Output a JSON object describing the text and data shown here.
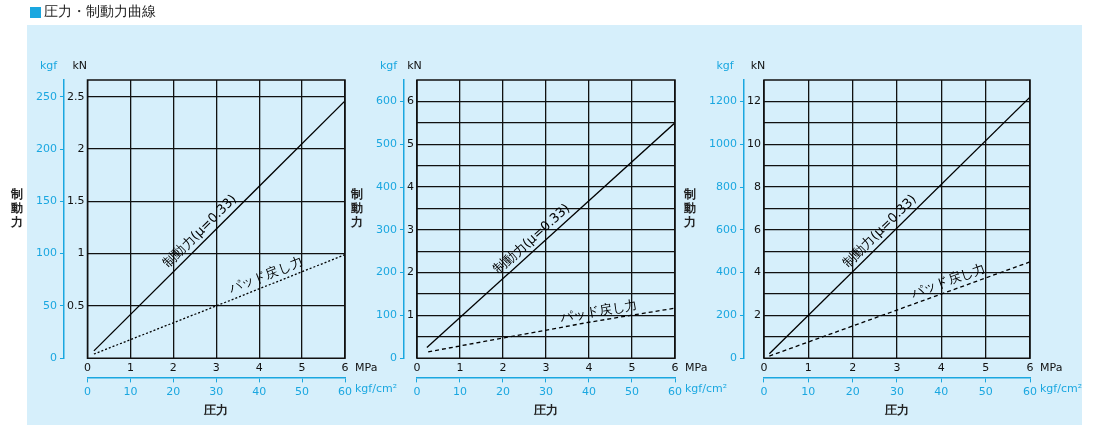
{
  "chart_data": [
    {
      "type": "line",
      "title": "圧力・制動力曲線",
      "xlabel": "圧力",
      "ylabel": "制動力",
      "annotations": [
        "kN",
        "kgf",
        "MPa",
        "kgf/cm²"
      ],
      "series": [
        {
          "name": "制動力(μ=0.33)",
          "color": "#000000",
          "axis": "y2",
          "x": [
            0.15,
            6
          ],
          "values": [
            0.07,
            2.46
          ],
          "line_style": "solid"
        },
        {
          "name": "パッド戻し力",
          "color": "#000000",
          "axis": "y2",
          "x": [
            0.15,
            3,
            6
          ],
          "values": [
            0.04,
            0.5,
            0.99
          ],
          "line_style": "dotted"
        }
      ],
      "xlim": [
        0,
        6
      ],
      "xticks": [
        0,
        1,
        2,
        3,
        4,
        5,
        6
      ],
      "x2lim": [
        0,
        60
      ],
      "x2ticks": [
        0,
        10,
        20,
        30,
        40,
        50,
        60
      ],
      "y2lim": [
        0,
        2.66
      ],
      "y2ticks": [
        0.5,
        1,
        1.5,
        2,
        2.5
      ],
      "ylim": [
        0,
        266
      ],
      "yticks": [
        0,
        50,
        100,
        150,
        200,
        250
      ],
      "grid": true,
      "legend": false,
      "marker": "none"
    },
    {
      "type": "line",
      "xlabel": "圧力",
      "ylabel": "制動力",
      "annotations": [
        "kN",
        "kgf",
        "MPa",
        "kgf/cm²"
      ],
      "series": [
        {
          "name": "制動力(μ=0.33)",
          "color": "#000000",
          "axis": "y2",
          "x": [
            0.23,
            6
          ],
          "values": [
            0.25,
            5.5
          ],
          "line_style": "solid"
        },
        {
          "name": "パッド戻し力",
          "color": "#000000",
          "axis": "y2",
          "x": [
            0.26,
            2,
            4,
            6
          ],
          "values": [
            0.15,
            0.47,
            0.84,
            1.17
          ],
          "line_style": "dashed"
        }
      ],
      "xlim": [
        0,
        6
      ],
      "xticks": [
        0,
        1,
        2,
        3,
        4,
        5,
        6
      ],
      "x2lim": [
        0,
        60
      ],
      "x2ticks": [
        0,
        10,
        20,
        30,
        40,
        50,
        60
      ],
      "y2lim": [
        0,
        6.5
      ],
      "y2ticks": [
        {
          "value": 0.5,
          "label": null
        },
        1,
        {
          "value": 1.5,
          "label": null
        },
        2,
        {
          "value": 2.5,
          "label": null
        },
        3,
        {
          "value": 3.5,
          "label": null
        },
        4,
        {
          "value": 4.5,
          "label": null
        },
        5,
        {
          "value": 5.5,
          "label": null
        },
        6
      ],
      "ylim": [
        0,
        650
      ],
      "yticks": [
        0,
        100,
        200,
        300,
        400,
        500,
        600
      ],
      "grid": true,
      "legend": false,
      "marker": "none"
    },
    {
      "type": "line",
      "xlabel": "圧力",
      "ylabel": "制動力",
      "annotations": [
        "kN",
        "kgf",
        "MPa",
        "kgf/cm²"
      ],
      "series": [
        {
          "name": "制動力(μ=0.33)",
          "color": "#000000",
          "axis": "y2",
          "x": [
            0.12,
            6
          ],
          "values": [
            0.21,
            12.2
          ],
          "line_style": "solid"
        },
        {
          "name": "パッド戻し力",
          "color": "#000000",
          "axis": "y2",
          "x": [
            0.12,
            3,
            6
          ],
          "values": [
            0.1,
            2.25,
            4.5
          ],
          "line_style": "dashed"
        }
      ],
      "xlim": [
        0,
        6
      ],
      "xticks": [
        0,
        1,
        2,
        3,
        4,
        5,
        6
      ],
      "x2lim": [
        0,
        60
      ],
      "x2ticks": [
        0,
        10,
        20,
        30,
        40,
        50,
        60
      ],
      "y2lim": [
        0,
        13
      ],
      "y2ticks": [
        {
          "value": 1,
          "label": null
        },
        2,
        {
          "value": 3,
          "label": null
        },
        4,
        {
          "value": 5,
          "label": null
        },
        6,
        {
          "value": 7,
          "label": null
        },
        8,
        {
          "value": 9,
          "label": null
        },
        10,
        {
          "value": 11,
          "label": null
        },
        12
      ],
      "ylim": [
        0,
        1300
      ],
      "yticks": [
        0,
        200,
        400,
        600,
        800,
        1000,
        1200
      ],
      "grid": true,
      "legend": false,
      "marker": "none"
    }
  ]
}
